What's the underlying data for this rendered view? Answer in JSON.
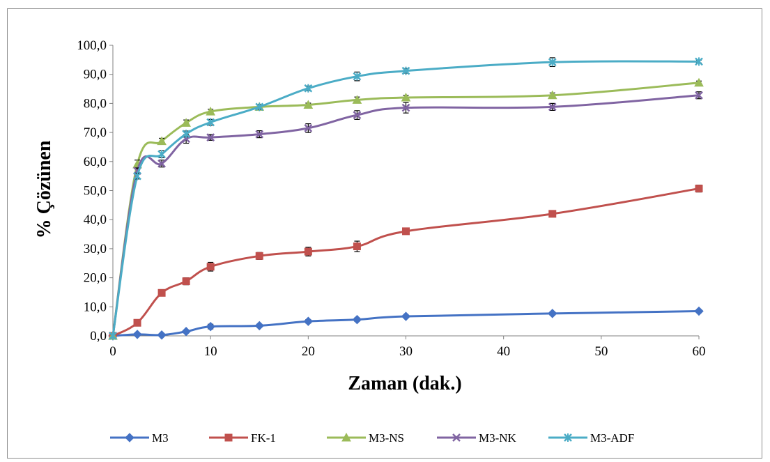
{
  "chart_data": {
    "type": "line",
    "title": "",
    "xlabel": "Zaman (dak.)",
    "ylabel": "% Çözünen",
    "xlim": [
      0,
      60
    ],
    "ylim": [
      0,
      100
    ],
    "xticks": [
      0,
      10,
      20,
      30,
      40,
      50,
      60
    ],
    "xtick_labels": [
      "0",
      "10",
      "20",
      "30",
      "40",
      "50",
      "60"
    ],
    "yticks": [
      0,
      10,
      20,
      30,
      40,
      50,
      60,
      70,
      80,
      90,
      100
    ],
    "ytick_labels": [
      "0,0",
      "10,0",
      "20,0",
      "30,0",
      "40,0",
      "50,0",
      "60,0",
      "70,0",
      "80,0",
      "90,0",
      "100,0"
    ],
    "grid": false,
    "legend_position": "bottom",
    "x": [
      0,
      2.5,
      5,
      7.5,
      10,
      15,
      20,
      25,
      30,
      45,
      60
    ],
    "series": [
      {
        "name": "M3",
        "color": "#4472C4",
        "marker": "diamond",
        "values": [
          0,
          0.5,
          0.3,
          1.5,
          3.2,
          3.5,
          5.0,
          5.6,
          6.7,
          7.7,
          8.5
        ],
        "errors": [
          0,
          0.3,
          0.3,
          0.5,
          0.8,
          0.5,
          0.6,
          0.6,
          0.5,
          0.6,
          0.5
        ]
      },
      {
        "name": "FK-1",
        "color": "#C0504D",
        "marker": "square",
        "values": [
          0,
          4.5,
          14.8,
          18.8,
          23.8,
          27.5,
          29.0,
          30.8,
          36.0,
          42.0,
          50.7
        ],
        "errors": [
          0,
          0.5,
          0.6,
          1.2,
          1.5,
          1.2,
          1.5,
          1.8,
          0.7,
          0.7,
          1.2
        ]
      },
      {
        "name": "M3-NS",
        "color": "#9BBB59",
        "marker": "triangle",
        "values": [
          0,
          59.0,
          67.0,
          73.3,
          77.2,
          78.8,
          79.5,
          81.2,
          82.0,
          82.8,
          87.1
        ],
        "errors": [
          0,
          1.5,
          1.0,
          1.0,
          0.8,
          0.6,
          0.6,
          1.0,
          0.8,
          0.8,
          0.6
        ]
      },
      {
        "name": "M3-NK",
        "color": "#8064A2",
        "marker": "x",
        "values": [
          0,
          56.8,
          59.3,
          67.8,
          68.3,
          69.4,
          71.5,
          76.0,
          78.5,
          78.8,
          82.8
        ],
        "errors": [
          0,
          1.0,
          1.2,
          1.5,
          1.0,
          1.2,
          1.5,
          1.5,
          1.8,
          1.2,
          1.2
        ]
      },
      {
        "name": "M3-ADF",
        "color": "#4BACC6",
        "marker": "star",
        "values": [
          0,
          55.0,
          62.5,
          69.5,
          73.5,
          78.8,
          85.2,
          89.3,
          91.2,
          94.2,
          94.4
        ],
        "errors": [
          0,
          1.0,
          1.2,
          1.0,
          1.0,
          0.8,
          0.8,
          1.5,
          0.8,
          1.5,
          0.5
        ]
      }
    ]
  }
}
